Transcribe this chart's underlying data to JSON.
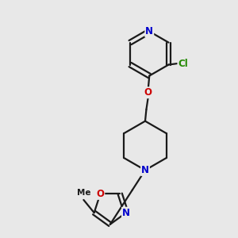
{
  "background_color": "#e8e8e8",
  "bond_color": "#1a1a1a",
  "bond_width": 1.6,
  "atom_colors": {
    "N": "#0000cc",
    "O": "#cc0000",
    "Cl": "#228800",
    "C": "#1a1a1a"
  },
  "font_size_atom": 8.5,
  "font_size_methyl": 7.5,
  "figsize": [
    3.0,
    3.0
  ],
  "dpi": 100,
  "xlim": [
    0,
    10
  ],
  "ylim": [
    0,
    10
  ]
}
